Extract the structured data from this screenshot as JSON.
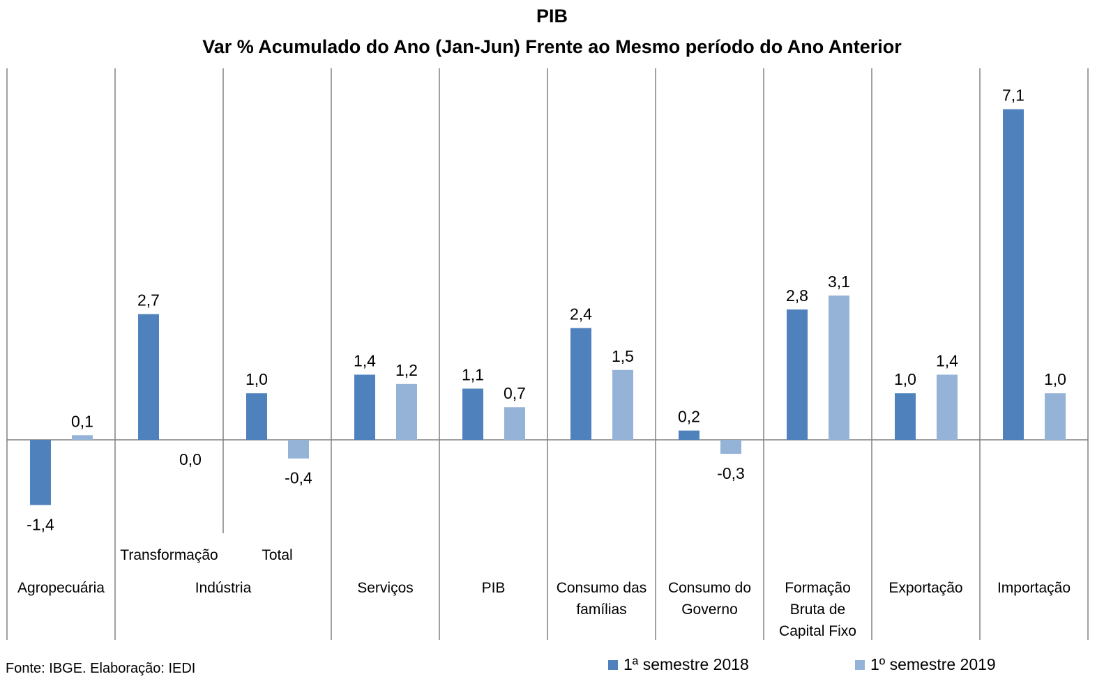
{
  "chart_data": {
    "type": "bar",
    "title": "PIB",
    "subtitle": "Var % Acumulado do Ano (Jan-Jun) Frente ao Mesmo período do Ano Anterior",
    "groups": [
      {
        "label": "Agropecuária",
        "categories": [
          {
            "sublabel": "",
            "values": [
              -1.4,
              0.1
            ],
            "labels": [
              "-1,4",
              "0,1"
            ]
          }
        ]
      },
      {
        "label": "Indústria",
        "categories": [
          {
            "sublabel": "Transformação",
            "values": [
              2.7,
              0.0
            ],
            "labels": [
              "2,7",
              "0,0"
            ]
          },
          {
            "sublabel": "Total",
            "values": [
              1.0,
              -0.4
            ],
            "labels": [
              "1,0",
              "-0,4"
            ]
          }
        ]
      },
      {
        "label": "Serviços",
        "categories": [
          {
            "sublabel": "",
            "values": [
              1.4,
              1.2
            ],
            "labels": [
              "1,4",
              "1,2"
            ]
          }
        ]
      },
      {
        "label": "PIB",
        "categories": [
          {
            "sublabel": "",
            "values": [
              1.1,
              0.7
            ],
            "labels": [
              "1,1",
              "0,7"
            ]
          }
        ]
      },
      {
        "label": "Consumo das famílias",
        "label_lines": [
          "Consumo das",
          "famílias"
        ],
        "categories": [
          {
            "sublabel": "",
            "values": [
              2.4,
              1.5
            ],
            "labels": [
              "2,4",
              "1,5"
            ]
          }
        ]
      },
      {
        "label": "Consumo do Governo",
        "label_lines": [
          "Consumo do",
          "Governo"
        ],
        "categories": [
          {
            "sublabel": "",
            "values": [
              0.2,
              -0.3
            ],
            "labels": [
              "0,2",
              "-0,3"
            ]
          }
        ]
      },
      {
        "label": "Formação Bruta de Capital Fixo",
        "label_lines": [
          "Formação",
          "Bruta de",
          "Capital Fixo"
        ],
        "categories": [
          {
            "sublabel": "",
            "values": [
              2.8,
              3.1
            ],
            "labels": [
              "2,8",
              "3,1"
            ]
          }
        ]
      },
      {
        "label": "Exportação",
        "categories": [
          {
            "sublabel": "",
            "values": [
              1.0,
              1.4
            ],
            "labels": [
              "1,0",
              "1,4"
            ]
          }
        ]
      },
      {
        "label": "Importação",
        "categories": [
          {
            "sublabel": "",
            "values": [
              7.1,
              1.0
            ],
            "labels": [
              "7,1",
              "1,0"
            ]
          }
        ]
      }
    ],
    "series": [
      {
        "name": "1ª semestre 2018",
        "color": "#4f81bd"
      },
      {
        "name": "1º semestre 2019",
        "color": "#95b3d7"
      }
    ],
    "legend_position": "bottom-right",
    "grid": false
  },
  "source": "Fonte: IBGE. Elaboração: IEDI"
}
